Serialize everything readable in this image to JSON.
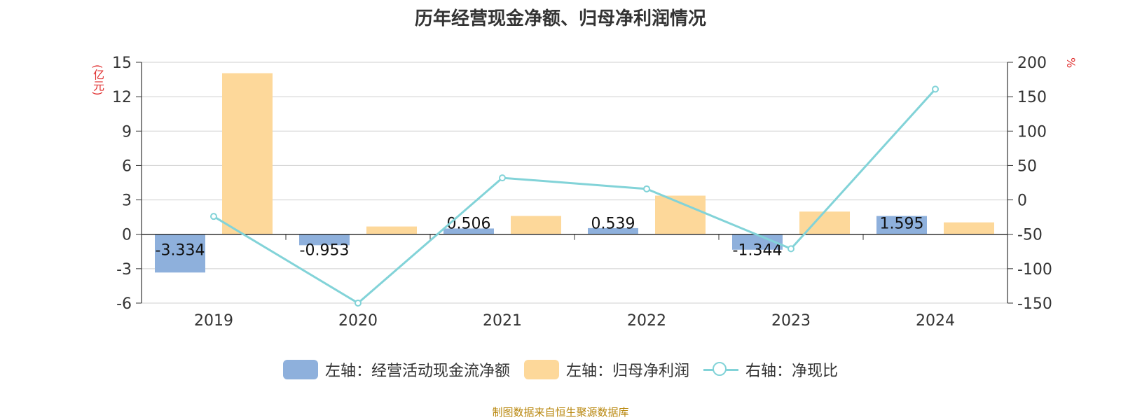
{
  "title": "历年经营现金净额、归母净利润情况",
  "source": "制图数据来自恒生聚源数据库",
  "units": {
    "left": "(亿元)",
    "right": "%"
  },
  "colors": {
    "cash": "#8eb0dc",
    "profit": "#fdd89a",
    "ratio": "#82d3d8"
  },
  "legend": [
    {
      "label": "左轴：经营活动现金流净额",
      "icon": "bar-swatch-blue"
    },
    {
      "label": "左轴：归母净利润",
      "icon": "bar-swatch-orange"
    },
    {
      "label": "右轴：净现比",
      "icon": "line-circle-marker"
    }
  ],
  "chart_data": {
    "type": "bar",
    "categories": [
      "2019",
      "2020",
      "2021",
      "2022",
      "2023",
      "2024"
    ],
    "series": [
      {
        "name": "左轴：经营活动现金流净额",
        "type": "bar",
        "axis": "left",
        "values": [
          -3.334,
          -0.953,
          0.506,
          0.539,
          -1.344,
          1.595
        ],
        "labels": [
          "-3.334",
          "-0.953",
          "0.506",
          "0.539",
          "-1.344",
          "1.595"
        ]
      },
      {
        "name": "左轴：归母净利润",
        "type": "bar",
        "axis": "left",
        "values": [
          14.05,
          0.68,
          1.6,
          3.37,
          1.98,
          1.04
        ]
      },
      {
        "name": "右轴：净现比",
        "type": "line",
        "axis": "right",
        "values": [
          -24,
          -150,
          32,
          16,
          -71,
          161
        ]
      }
    ],
    "yleft": {
      "ticks": [
        "15",
        "12",
        "9",
        "6",
        "3",
        "0",
        "-3",
        "-6"
      ],
      "min": -6,
      "max": 15
    },
    "yright": {
      "ticks": [
        "200",
        "150",
        "100",
        "50",
        "0",
        "-50",
        "-100",
        "-150"
      ],
      "min": -150,
      "max": 200
    },
    "grid": true,
    "legend_position": "bottom"
  }
}
